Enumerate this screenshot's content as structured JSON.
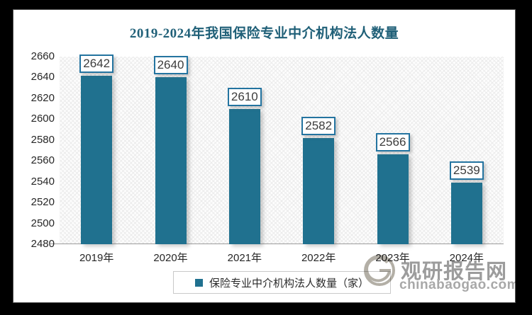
{
  "chart_data": {
    "type": "bar",
    "title": "2019-2024年我国保险专业中介机构法人数量",
    "categories": [
      "2019年",
      "2020年",
      "2021年",
      "2022年",
      "2023年",
      "2024年"
    ],
    "series": [
      {
        "name": "保险专业中介机构法人数量（家）",
        "values": [
          2642,
          2640,
          2610,
          2582,
          2566,
          2539
        ]
      }
    ],
    "ylim": [
      2480,
      2660
    ],
    "yticks": [
      2660,
      2640,
      2620,
      2600,
      2580,
      2560,
      2540,
      2520,
      2500,
      2480
    ],
    "grid": false,
    "legend_position": "bottom",
    "colors": {
      "bar": "#20718F",
      "label_box_border": "#2474A0",
      "title": "#206078",
      "axis_line": "#9B9B9B",
      "tick_text": "#262626"
    }
  },
  "legend": {
    "label": "保险专业中介机构法人数量（家）",
    "marker_color": "#20718F"
  },
  "watermark": {
    "brand": "观研报告网",
    "site": "chinabaogao.com"
  }
}
